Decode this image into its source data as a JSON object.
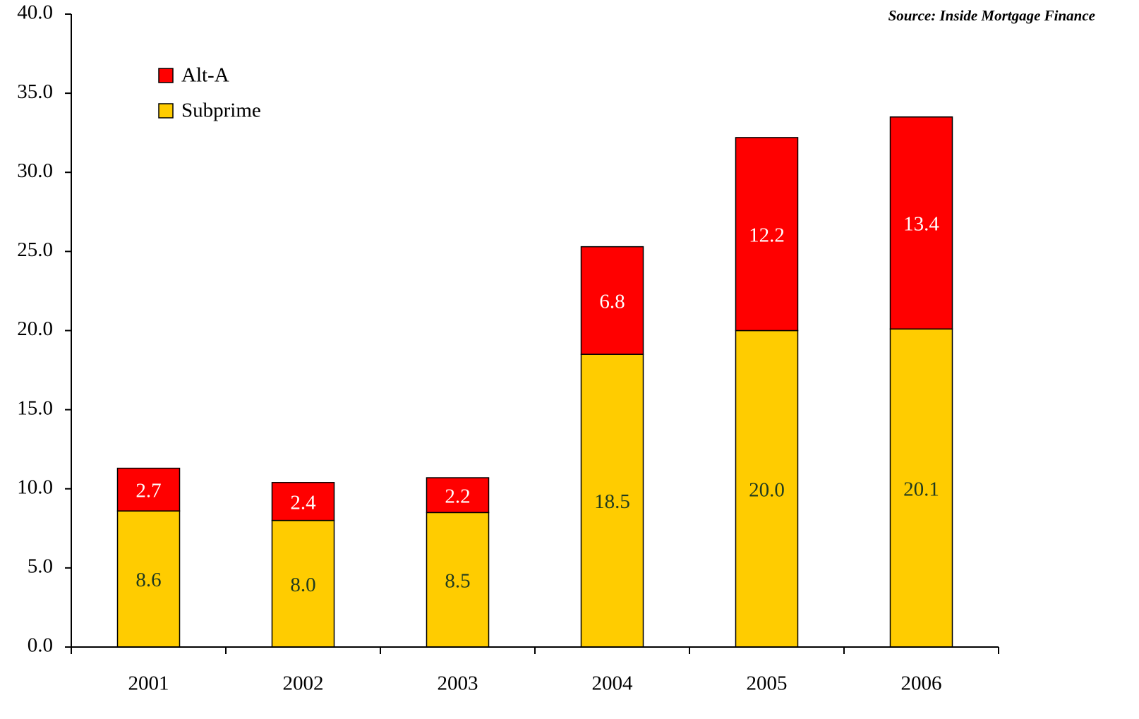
{
  "chart_data": {
    "type": "stacked_bar",
    "source": "Source: Inside Mortgage Finance",
    "categories": [
      "2001",
      "2002",
      "2003",
      "2004",
      "2005",
      "2006"
    ],
    "series": [
      {
        "name": "Subprime",
        "color": "#ffcc00",
        "label_color": "#1f3a1f",
        "values": [
          8.6,
          8.0,
          8.5,
          18.5,
          20.0,
          20.1
        ],
        "value_labels": [
          "8.6",
          "8.0",
          "8.5",
          "18.5",
          "20.0",
          "20.1"
        ]
      },
      {
        "name": "Alt-A",
        "color": "#ff0000",
        "label_color": "#ffffff",
        "values": [
          2.7,
          2.4,
          2.2,
          6.8,
          12.2,
          13.4
        ],
        "value_labels": [
          "2.7",
          "2.4",
          "2.2",
          "6.8",
          "12.2",
          "13.4"
        ]
      }
    ],
    "ylim": [
      0,
      40
    ],
    "yticks": [
      {
        "value": 0,
        "label": "0.0"
      },
      {
        "value": 5,
        "label": "5.0"
      },
      {
        "value": 10,
        "label": "10.0"
      },
      {
        "value": 15,
        "label": "15.0"
      },
      {
        "value": 20,
        "label": "20.0"
      },
      {
        "value": 25,
        "label": "25.0"
      },
      {
        "value": 30,
        "label": "30.0"
      },
      {
        "value": 35,
        "label": "35.0"
      },
      {
        "value": 40,
        "label": "40.0"
      }
    ],
    "legend": "upper left"
  }
}
